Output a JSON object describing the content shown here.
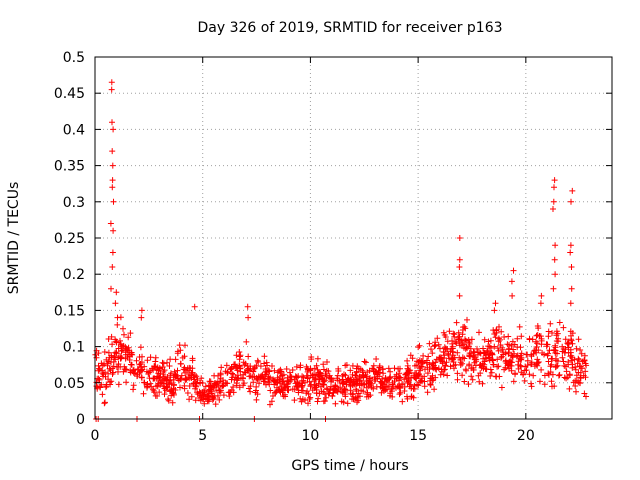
{
  "chart_data": {
    "type": "scatter",
    "title": "Day 326 of 2019, SRMTID for receiver p163",
    "xlabel": "GPS time / hours",
    "ylabel": "SRMTID / TECUs",
    "xlim": [
      0,
      24
    ],
    "ylim": [
      0,
      0.5
    ],
    "x_ticks": [
      0,
      5,
      10,
      15,
      20
    ],
    "y_ticks": [
      0,
      0.05,
      0.1,
      0.15,
      0.2,
      0.25,
      0.3,
      0.35,
      0.4,
      0.45,
      0.5
    ],
    "x_tick_labels": [
      "0",
      "5",
      "10",
      "15",
      "20"
    ],
    "y_tick_labels": [
      "0",
      "0.05",
      "0.1",
      "0.15",
      "0.2",
      "0.25",
      "0.3",
      "0.35",
      "0.4",
      "0.45",
      "0.5"
    ],
    "grid": true,
    "marker": "+",
    "color": "#ff0000",
    "envelope": [
      {
        "x": 0.0,
        "base": 0.06,
        "spread": 0.045
      },
      {
        "x": 0.5,
        "base": 0.06,
        "spread": 0.045
      },
      {
        "x": 0.8,
        "base": 0.08,
        "spread": 0.06
      },
      {
        "x": 1.2,
        "base": 0.09,
        "spread": 0.06
      },
      {
        "x": 1.8,
        "base": 0.08,
        "spread": 0.05
      },
      {
        "x": 2.5,
        "base": 0.06,
        "spread": 0.045
      },
      {
        "x": 3.5,
        "base": 0.05,
        "spread": 0.04
      },
      {
        "x": 4.0,
        "base": 0.07,
        "spread": 0.045
      },
      {
        "x": 4.7,
        "base": 0.05,
        "spread": 0.04
      },
      {
        "x": 5.0,
        "base": 0.035,
        "spread": 0.025
      },
      {
        "x": 6.0,
        "base": 0.05,
        "spread": 0.035
      },
      {
        "x": 7.0,
        "base": 0.07,
        "spread": 0.045
      },
      {
        "x": 7.5,
        "base": 0.06,
        "spread": 0.04
      },
      {
        "x": 8.5,
        "base": 0.05,
        "spread": 0.035
      },
      {
        "x": 9.5,
        "base": 0.05,
        "spread": 0.04
      },
      {
        "x": 10.3,
        "base": 0.055,
        "spread": 0.04
      },
      {
        "x": 11.0,
        "base": 0.045,
        "spread": 0.035
      },
      {
        "x": 12.0,
        "base": 0.05,
        "spread": 0.035
      },
      {
        "x": 13.0,
        "base": 0.055,
        "spread": 0.035
      },
      {
        "x": 14.0,
        "base": 0.05,
        "spread": 0.035
      },
      {
        "x": 15.0,
        "base": 0.065,
        "spread": 0.045
      },
      {
        "x": 16.0,
        "base": 0.085,
        "spread": 0.055
      },
      {
        "x": 17.0,
        "base": 0.095,
        "spread": 0.065
      },
      {
        "x": 18.0,
        "base": 0.085,
        "spread": 0.055
      },
      {
        "x": 19.0,
        "base": 0.09,
        "spread": 0.06
      },
      {
        "x": 20.0,
        "base": 0.085,
        "spread": 0.06
      },
      {
        "x": 21.0,
        "base": 0.09,
        "spread": 0.06
      },
      {
        "x": 22.0,
        "base": 0.085,
        "spread": 0.06
      },
      {
        "x": 22.8,
        "base": 0.06,
        "spread": 0.04
      }
    ],
    "spikes": [
      {
        "x": 0.8,
        "values": [
          0.465,
          0.455,
          0.41,
          0.4,
          0.37,
          0.35,
          0.33,
          0.32,
          0.3,
          0.27,
          0.26,
          0.23,
          0.21,
          0.18
        ]
      },
      {
        "x": 1.0,
        "values": [
          0.175,
          0.16,
          0.14,
          0.13
        ]
      },
      {
        "x": 2.2,
        "values": [
          0.15,
          0.14
        ]
      },
      {
        "x": 4.6,
        "values": [
          0.155
        ]
      },
      {
        "x": 7.1,
        "values": [
          0.155,
          0.14
        ]
      },
      {
        "x": 16.9,
        "values": [
          0.25,
          0.22,
          0.21,
          0.17
        ]
      },
      {
        "x": 18.6,
        "values": [
          0.16,
          0.15
        ]
      },
      {
        "x": 19.4,
        "values": [
          0.205,
          0.19,
          0.17
        ]
      },
      {
        "x": 20.7,
        "values": [
          0.17,
          0.16
        ]
      },
      {
        "x": 21.3,
        "values": [
          0.33,
          0.32,
          0.3,
          0.29,
          0.24,
          0.22,
          0.2,
          0.18
        ]
      },
      {
        "x": 22.1,
        "values": [
          0.315,
          0.3,
          0.24,
          0.23,
          0.21,
          0.18,
          0.16
        ]
      }
    ],
    "zero_markers": [
      0.05,
      0.15,
      1.95,
      4.85,
      7.4,
      10.7
    ]
  }
}
